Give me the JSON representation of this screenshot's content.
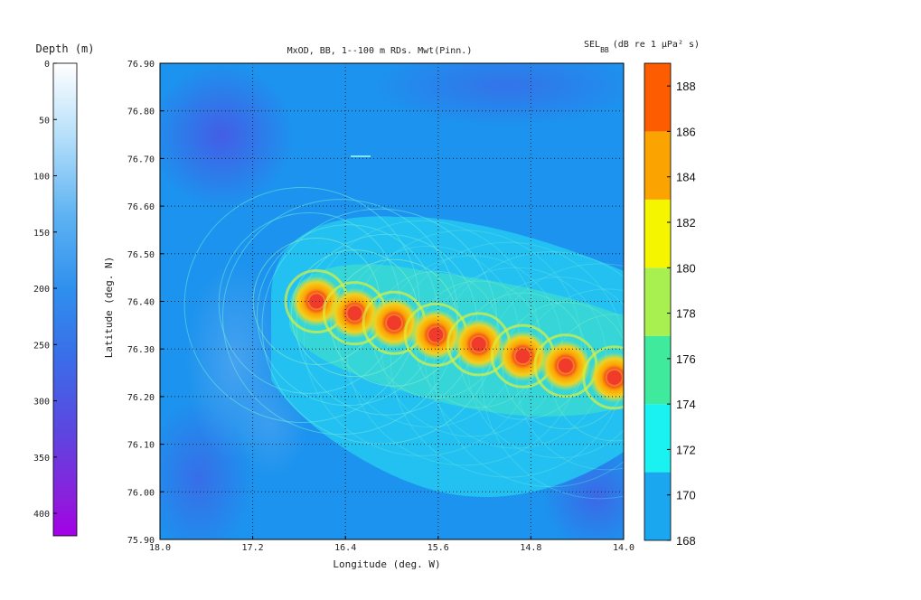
{
  "chart_data": {
    "type": "heatmap",
    "title": "MxOD, BB, 1--100 m RDs. Mwt(Pinn.)",
    "xlabel": "Longitude (deg. W)",
    "ylabel": "Latitude (deg. N)",
    "xlim": [
      18.0,
      14.0
    ],
    "ylim": [
      75.9,
      76.9
    ],
    "x_ticks": [
      "18.0",
      "17.2",
      "16.4",
      "15.6",
      "14.8",
      "14.0"
    ],
    "x_tick_values": [
      18.0,
      17.2,
      16.4,
      15.6,
      14.8,
      14.0
    ],
    "y_ticks": [
      "75.90",
      "76.00",
      "76.10",
      "76.20",
      "76.30",
      "76.40",
      "76.50",
      "76.60",
      "76.70",
      "76.80",
      "76.90"
    ],
    "y_tick_values": [
      75.9,
      76.0,
      76.1,
      76.2,
      76.3,
      76.4,
      76.5,
      76.6,
      76.7,
      76.8,
      76.9
    ],
    "grid": true,
    "sources": [
      {
        "lon": 16.65,
        "lat": 76.4
      },
      {
        "lon": 16.32,
        "lat": 76.375
      },
      {
        "lon": 15.98,
        "lat": 76.355
      },
      {
        "lon": 15.62,
        "lat": 76.33
      },
      {
        "lon": 15.25,
        "lat": 76.31
      },
      {
        "lon": 14.87,
        "lat": 76.285
      },
      {
        "lon": 14.5,
        "lat": 76.265
      },
      {
        "lon": 14.08,
        "lat": 76.24
      }
    ],
    "depth_colorbar": {
      "label": "Depth (m)",
      "range": [
        0,
        420
      ],
      "ticks": [
        "0",
        "50",
        "100",
        "150",
        "200",
        "250",
        "300",
        "350",
        "400"
      ],
      "tick_values": [
        0,
        50,
        100,
        150,
        200,
        250,
        300,
        350,
        400
      ],
      "colors": [
        "#ffffff",
        "#7fc4f2",
        "#2e95ef",
        "#3f70e8",
        "#5a4ae0",
        "#8c22da",
        "#a000e0"
      ]
    },
    "sel_colorbar": {
      "label_main": "SEL",
      "label_sub": "BB",
      "label_rest": "(dB re 1  μPa² s)",
      "range": [
        168,
        189
      ],
      "ticks": [
        "168",
        "170",
        "172",
        "174",
        "176",
        "178",
        "180",
        "182",
        "184",
        "186",
        "188"
      ],
      "tick_values": [
        168,
        170,
        172,
        174,
        176,
        178,
        180,
        182,
        184,
        186,
        188
      ],
      "bands": [
        {
          "from": 168,
          "to": 171,
          "color": "#1aa7f0"
        },
        {
          "from": 171,
          "to": 174,
          "color": "#19f2f0"
        },
        {
          "from": 174,
          "to": 177,
          "color": "#40ea9c"
        },
        {
          "from": 177,
          "to": 180,
          "color": "#a8f050"
        },
        {
          "from": 180,
          "to": 183,
          "color": "#f5f500"
        },
        {
          "from": 183,
          "to": 186,
          "color": "#fba300"
        },
        {
          "from": 186,
          "to": 189,
          "color": "#fd5d00"
        }
      ]
    }
  }
}
